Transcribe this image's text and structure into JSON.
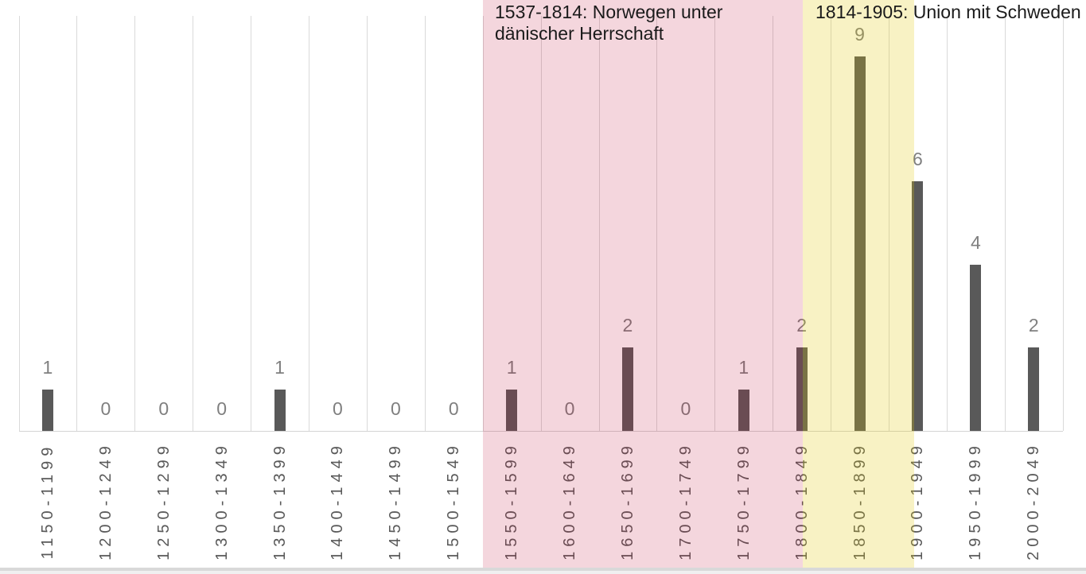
{
  "chart_data": {
    "type": "bar",
    "title": "",
    "xlabel": "",
    "ylabel": "",
    "ylim": [
      0,
      10
    ],
    "grid": "vertical-category-separators",
    "legend_position": "none",
    "categories": [
      "1150-1199",
      "1200-1249",
      "1250-1299",
      "1300-1349",
      "1350-1399",
      "1400-1449",
      "1450-1499",
      "1500-1549",
      "1550-1599",
      "1600-1649",
      "1650-1699",
      "1700-1749",
      "1750-1799",
      "1800-1849",
      "1850-1899",
      "1900-1949",
      "1950-1999",
      "2000-2049"
    ],
    "values": [
      1,
      0,
      0,
      0,
      1,
      0,
      0,
      0,
      1,
      0,
      2,
      0,
      1,
      2,
      9,
      6,
      4,
      2
    ],
    "bar_color": "#595959",
    "value_label_color": "#7f7f7f",
    "axis_label_color": "#595959",
    "gridline_color": "#d9d9d9",
    "regions": [
      {
        "name": "danish-rule",
        "label": "1537-1814: Norwegen unter dänischer Herrschaft",
        "overlay_color": "rgba(190,14,55,0.17)",
        "from_category": "1550-1599",
        "to_category": "1800-1849"
      },
      {
        "name": "swedish-union",
        "label": "1814-1905: Union mit Schweden",
        "overlay_color": "rgba(225,200,4,0.235)",
        "from_category": "1800-1849",
        "to_category": "1900-1949"
      }
    ],
    "annotation_color": "#1a1a1a"
  }
}
